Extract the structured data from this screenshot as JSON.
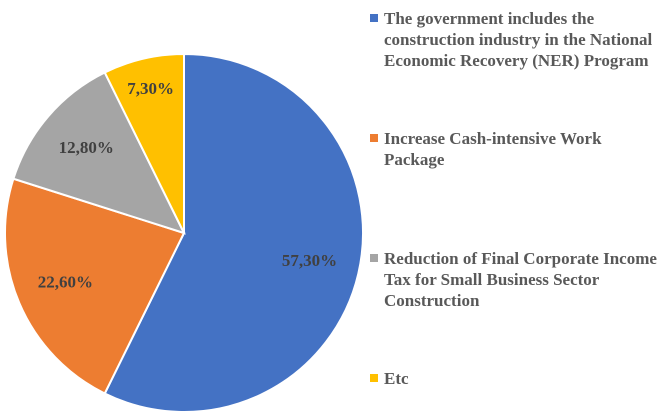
{
  "chart_data": {
    "type": "pie",
    "categories": [
      "The government includes the construction industry in the National Economic Recovery (NER) Program",
      "Increase Cash-intensive Work Package",
      "Reduction of Final Corporate Income Tax for Small Business Sector Construction",
      "Etc"
    ],
    "values": [
      57.3,
      22.6,
      12.8,
      7.3
    ],
    "value_labels": [
      "57,30%",
      "22,60%",
      "12,80%",
      "7,30%"
    ],
    "colors": [
      "#4472c4",
      "#ed7d31",
      "#a5a5a5",
      "#ffc000"
    ],
    "legend": "right"
  }
}
